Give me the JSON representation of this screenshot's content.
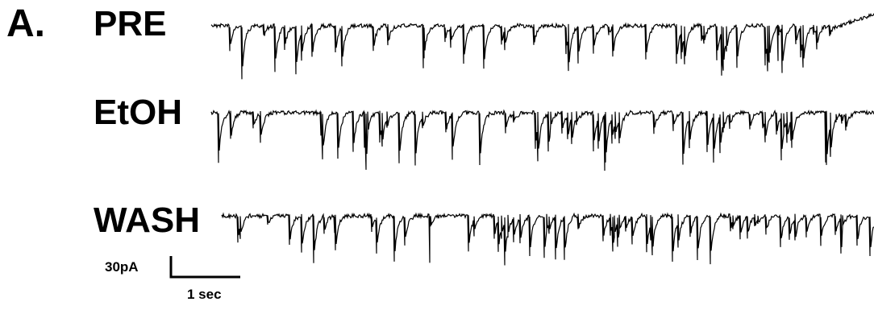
{
  "panel_label": "A.",
  "traces": [
    {
      "label": "PRE"
    },
    {
      "label": "EtOH"
    },
    {
      "label": "WASH"
    }
  ],
  "scalebar": {
    "y_label": "30pA",
    "x_label": "1 sec"
  },
  "colors": {
    "trace": "#000000",
    "background": "#ffffff"
  }
}
